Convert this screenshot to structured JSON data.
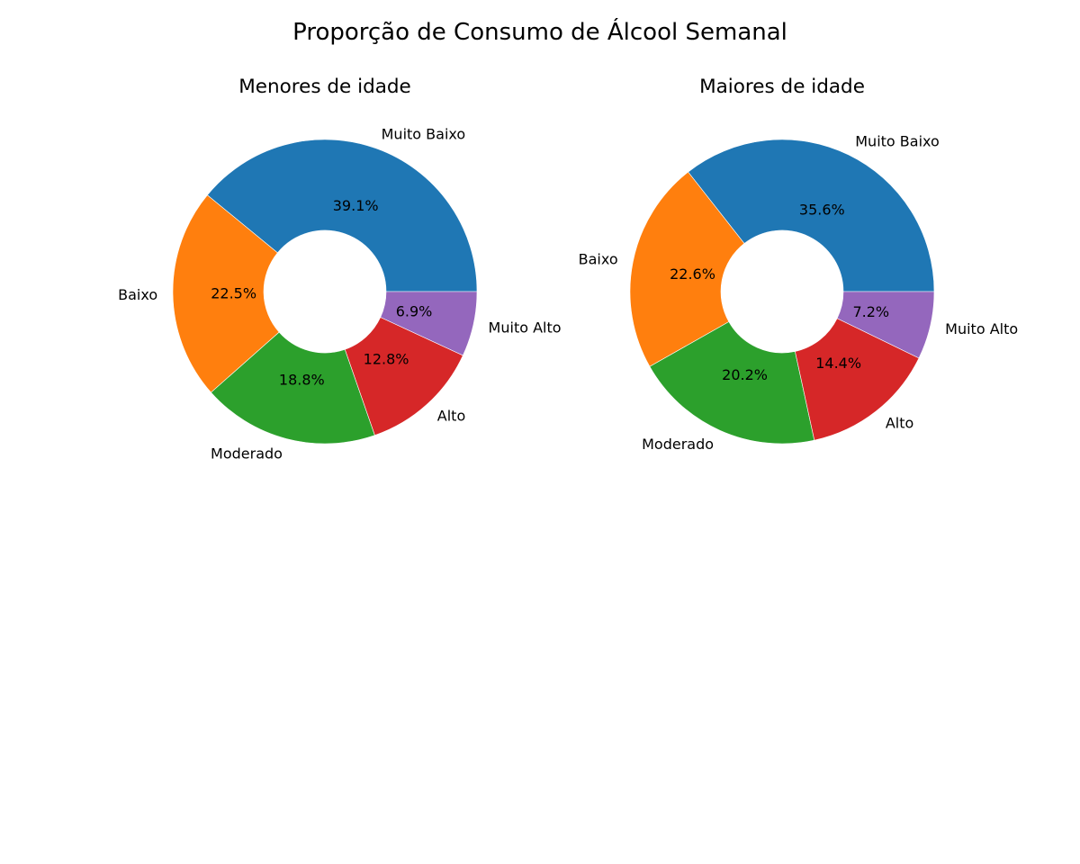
{
  "figure": {
    "suptitle": "Proporção de Consumo de Álcool Semanal"
  },
  "chart_data": [
    {
      "type": "pie",
      "title": "Menores de idade",
      "donut": true,
      "categories": [
        "Muito Baixo",
        "Baixo",
        "Moderado",
        "Alto",
        "Muito Alto"
      ],
      "values": [
        39.1,
        22.5,
        18.8,
        12.8,
        6.9
      ],
      "value_labels": [
        "39.1%",
        "22.5%",
        "18.8%",
        "12.8%",
        "6.9%"
      ],
      "colors": [
        "#1f77b4",
        "#ff7f0e",
        "#2ca02c",
        "#d62728",
        "#9467bd"
      ],
      "start_angle": 0,
      "direction": "counterclockwise"
    },
    {
      "type": "pie",
      "title": "Maiores de idade",
      "donut": true,
      "categories": [
        "Muito Baixo",
        "Baixo",
        "Moderado",
        "Alto",
        "Muito Alto"
      ],
      "values": [
        35.6,
        22.6,
        20.2,
        14.4,
        7.2
      ],
      "value_labels": [
        "35.6%",
        "22.6%",
        "20.2%",
        "14.4%",
        "7.2%"
      ],
      "colors": [
        "#1f77b4",
        "#ff7f0e",
        "#2ca02c",
        "#d62728",
        "#9467bd"
      ],
      "start_angle": 0,
      "direction": "counterclockwise"
    }
  ]
}
